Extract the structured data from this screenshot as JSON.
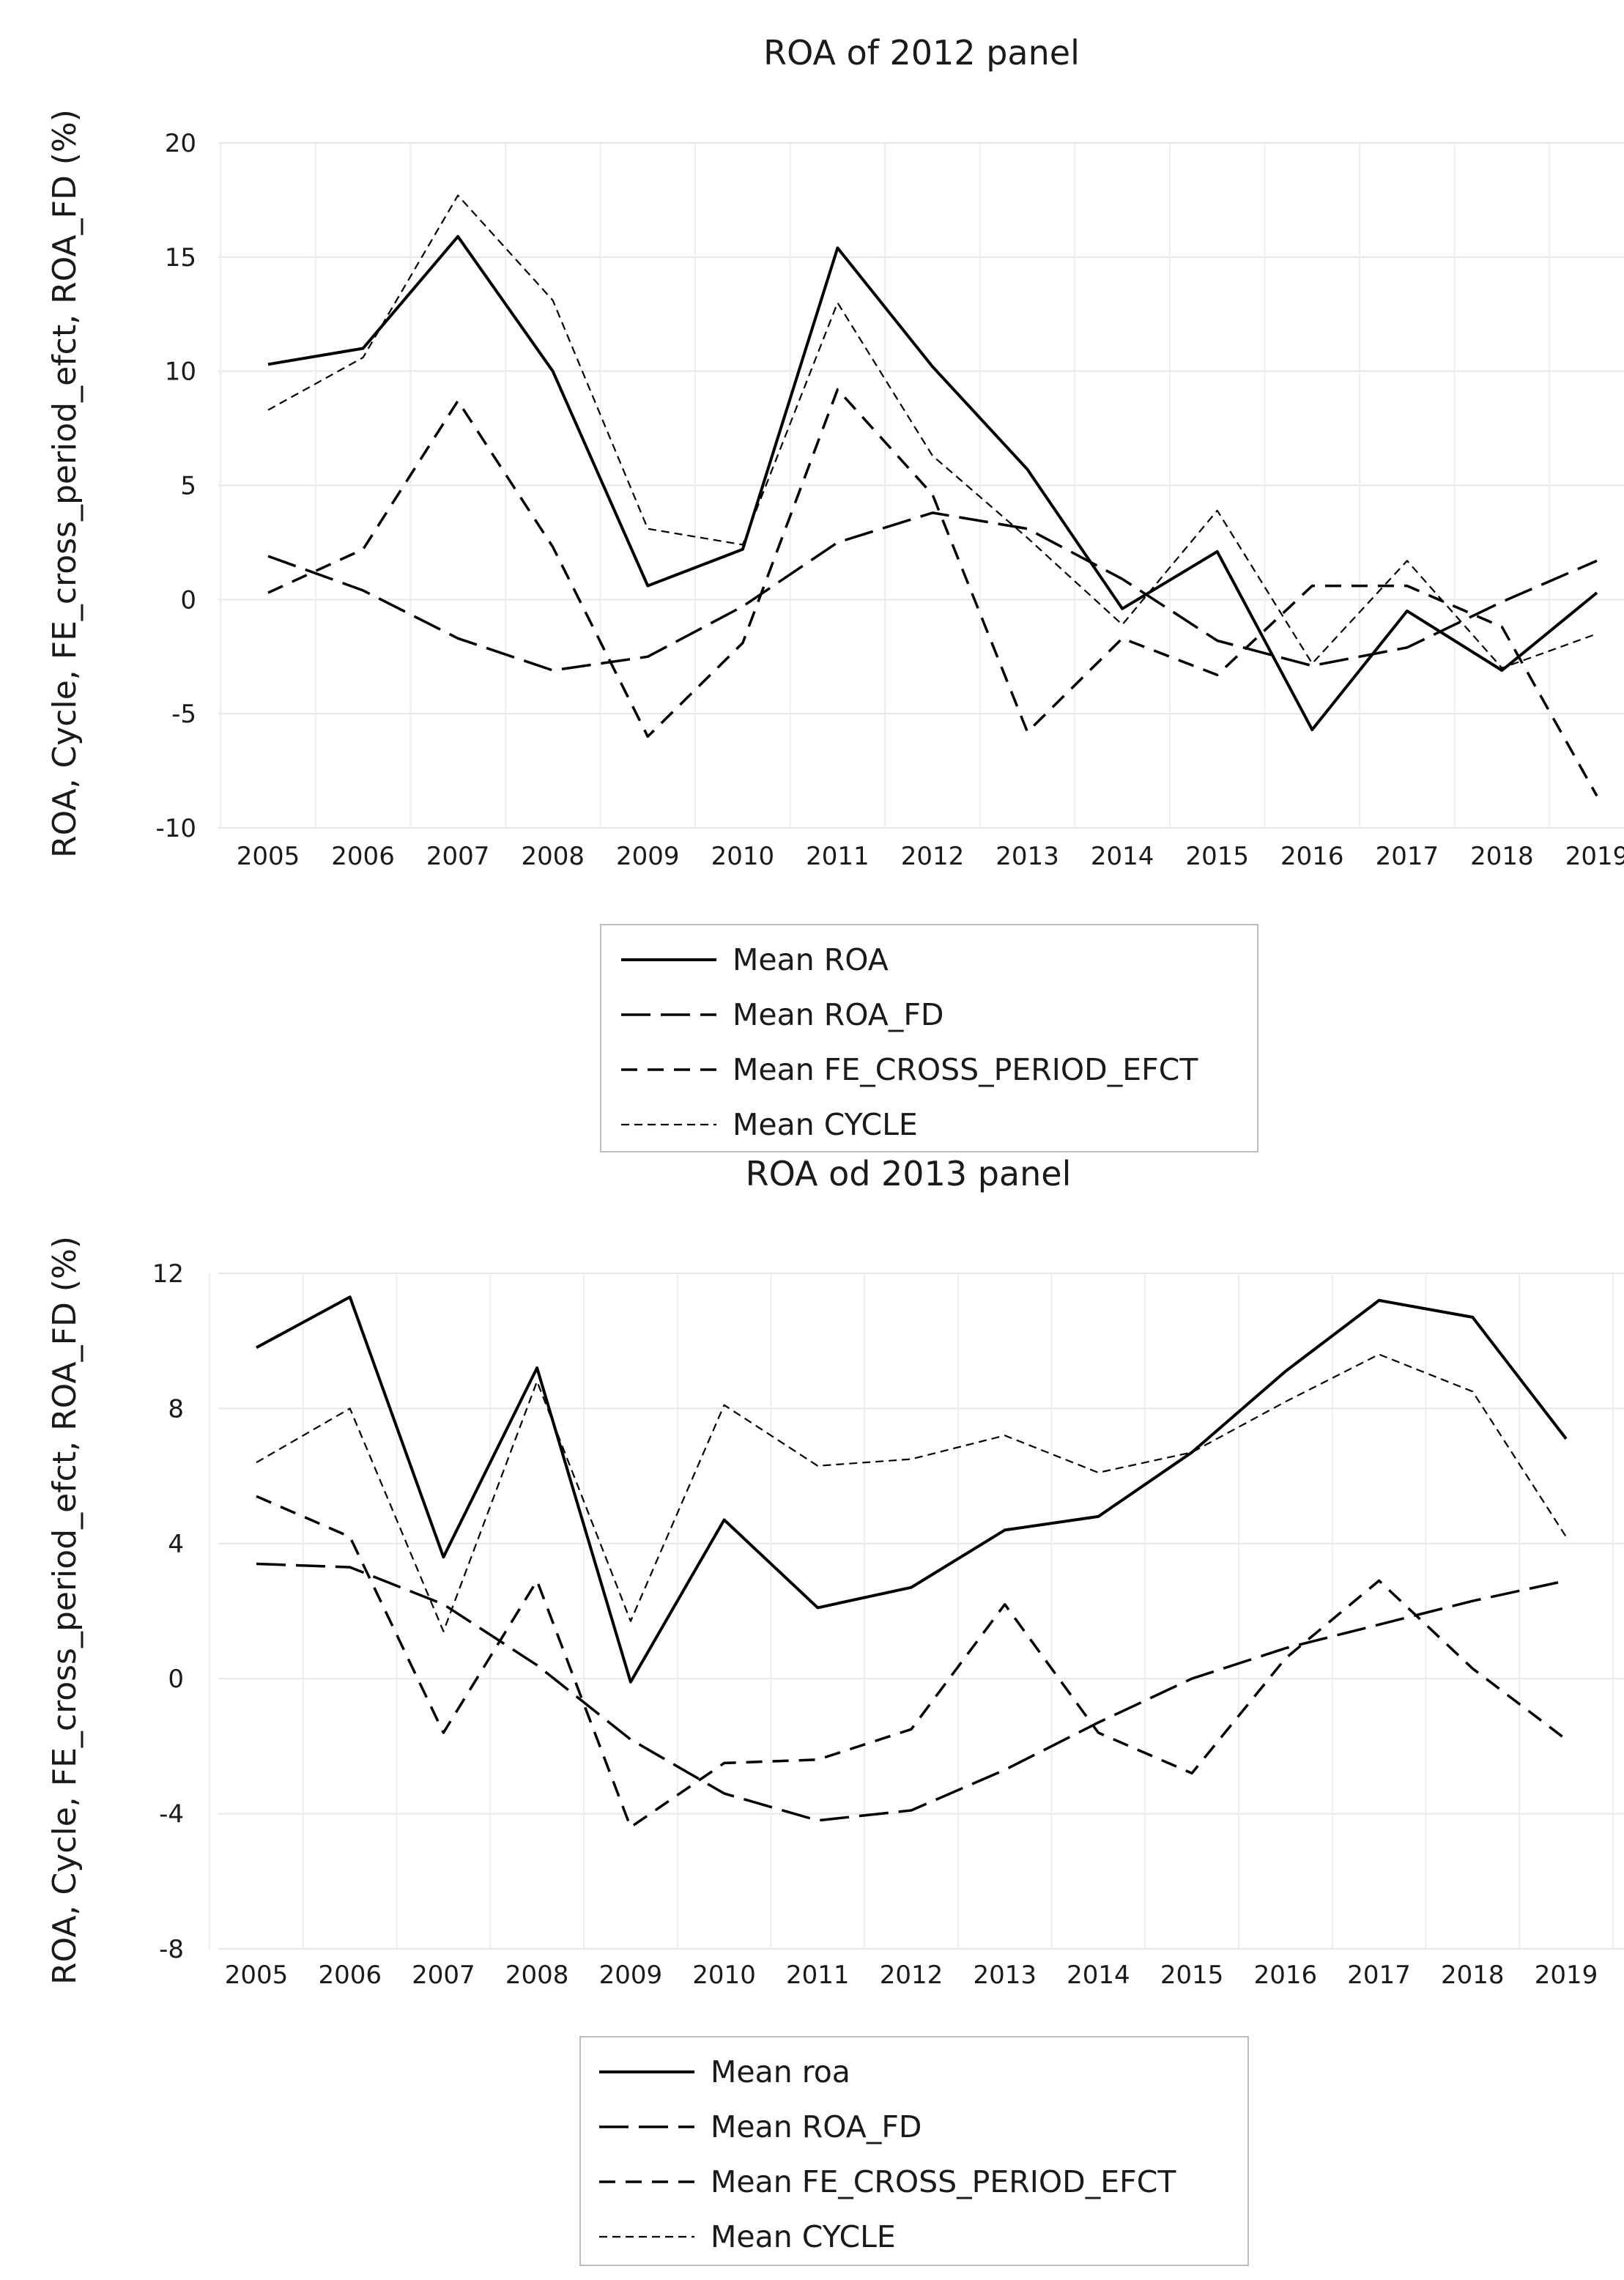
{
  "chart_data": [
    {
      "type": "line",
      "title": "ROA of 2012 panel",
      "xlabel": "",
      "ylabel": "ROA, Cycle, FE_cross_period_efct, ROA_FD (%)",
      "categories": [
        "2005",
        "2006",
        "2007",
        "2008",
        "2009",
        "2010",
        "2011",
        "2012",
        "2013",
        "2014",
        "2015",
        "2016",
        "2017",
        "2018",
        "2019"
      ],
      "ylim": [
        -10,
        20
      ],
      "yticks": [
        -10,
        -5,
        0,
        5,
        10,
        15,
        20
      ],
      "ytick_labels": [
        "-10",
        "-5",
        "0",
        "5",
        "10",
        "15",
        "20"
      ],
      "grid": true,
      "legend_position": "bottom",
      "series": [
        {
          "name": "Mean ROA",
          "style": "solid",
          "values": [
            10.3,
            11.0,
            15.9,
            10.0,
            0.6,
            2.2,
            15.4,
            10.2,
            5.7,
            -0.4,
            2.1,
            -5.7,
            -0.5,
            -3.1,
            0.3
          ]
        },
        {
          "name": "Mean ROA_FD",
          "style": "long-dash",
          "values": [
            1.9,
            0.4,
            -1.7,
            -3.1,
            -2.5,
            -0.3,
            2.5,
            3.8,
            3.1,
            0.9,
            -1.8,
            -2.9,
            -2.1,
            -0.1,
            1.7
          ]
        },
        {
          "name": "Mean FE_CROSS_PERIOD_EFCT",
          "style": "dash",
          "values": [
            0.3,
            2.2,
            8.7,
            2.3,
            -6.0,
            -1.9,
            9.2,
            4.6,
            -5.8,
            -1.7,
            -3.3,
            0.6,
            0.6,
            -1.2,
            -8.6
          ]
        },
        {
          "name": "Mean CYCLE",
          "style": "short-dash",
          "values": [
            8.3,
            10.6,
            17.7,
            13.1,
            3.1,
            2.4,
            13.0,
            6.3,
            2.7,
            -1.1,
            3.9,
            -2.8,
            1.7,
            -3.0,
            -1.5
          ]
        }
      ]
    },
    {
      "type": "line",
      "title": "ROA od 2013 panel",
      "xlabel": "",
      "ylabel": "ROA, Cycle, FE_cross_period_efct, ROA_FD (%)",
      "categories": [
        "2005",
        "2006",
        "2007",
        "2008",
        "2009",
        "2010",
        "2011",
        "2012",
        "2013",
        "2014",
        "2015",
        "2016",
        "2017",
        "2018",
        "2019"
      ],
      "ylim": [
        -8,
        12
      ],
      "yticks": [
        -8,
        -4,
        0,
        4,
        8,
        12
      ],
      "ytick_labels": [
        "-8",
        "-4",
        "0",
        "4",
        "8",
        "12"
      ],
      "grid": true,
      "legend_position": "bottom",
      "series": [
        {
          "name": "Mean roa",
          "style": "solid",
          "values": [
            9.8,
            11.3,
            3.6,
            9.2,
            -0.1,
            4.7,
            2.1,
            2.7,
            4.4,
            4.8,
            6.7,
            9.1,
            11.2,
            10.7,
            7.1
          ]
        },
        {
          "name": "Mean ROA_FD",
          "style": "long-dash",
          "values": [
            3.4,
            3.3,
            2.2,
            0.4,
            -1.8,
            -3.4,
            -4.2,
            -3.9,
            -2.7,
            -1.3,
            0.0,
            0.9,
            1.6,
            2.3,
            2.9
          ]
        },
        {
          "name": "Mean FE_CROSS_PERIOD_EFCT",
          "style": "dash",
          "values": [
            5.4,
            4.2,
            -1.6,
            2.9,
            -4.4,
            -2.5,
            -2.4,
            -1.5,
            2.2,
            -1.6,
            -2.8,
            0.6,
            2.9,
            0.3,
            -1.8
          ]
        },
        {
          "name": "Mean CYCLE",
          "style": "short-dash",
          "values": [
            6.4,
            8.0,
            1.4,
            8.8,
            1.7,
            8.1,
            6.3,
            6.5,
            7.2,
            6.1,
            6.7,
            8.2,
            9.6,
            8.5,
            4.2
          ]
        }
      ]
    }
  ]
}
